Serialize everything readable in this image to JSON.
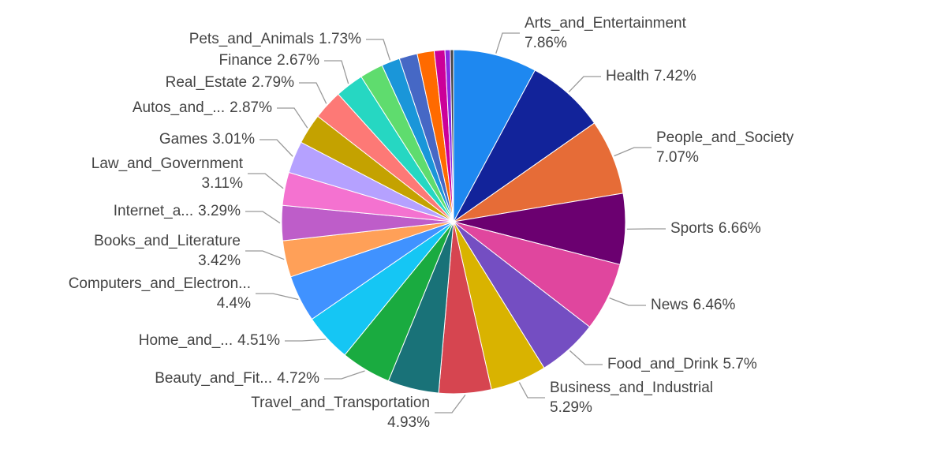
{
  "chart_data": {
    "type": "pie",
    "categories": [
      "Arts_and_Entertainment",
      "Health",
      "People_and_Society",
      "Sports",
      "News",
      "Food_and_Drink",
      "Business_and_Industrial",
      "Travel_and_Transportation",
      null,
      "Beauty_and_Fit...",
      "Home_and_...",
      "Computers_and_Electron...",
      "Books_and_Literature",
      "Internet_a...",
      "Law_and_Government",
      "Games",
      "Autos_and_...",
      "Real_Estate",
      "Finance",
      null,
      "Pets_and_Animals",
      null,
      null,
      null,
      null,
      null
    ],
    "values": [
      7.86,
      7.42,
      7.07,
      6.66,
      6.46,
      5.7,
      5.29,
      4.93,
      4.8,
      4.72,
      4.51,
      4.4,
      3.42,
      3.29,
      3.11,
      3.01,
      2.87,
      2.79,
      2.67,
      2.2,
      1.73,
      1.7,
      1.6,
      1.0,
      0.5,
      0.3
    ],
    "value_labels": [
      "7.86%",
      "7.42%",
      "7.07%",
      "6.66%",
      "6.46%",
      "5.7%",
      "5.29%",
      "4.93%",
      null,
      "4.72%",
      "4.51%",
      "4.4%",
      "3.42%",
      "3.29%",
      "3.11%",
      "3.01%",
      "2.87%",
      "2.79%",
      "2.67%",
      null,
      "1.73%",
      null,
      null,
      null,
      null,
      null
    ],
    "colors": [
      "#1e88f0",
      "#12239a",
      "#e66c37",
      "#6b0070",
      "#e0469e",
      "#744ec2",
      "#d9b300",
      "#d64550",
      "#197278",
      "#1aab40",
      "#15c6f4",
      "#4092ff",
      "#ffa058",
      "#be5dc9",
      "#f472d0",
      "#b5a1ff",
      "#c4a200",
      "#fd7976",
      "#26d7c2",
      "#5fdc6e",
      "#1a96d9",
      "#4668c5",
      "#ff6a00",
      "#cc0099",
      "#8a2be2",
      "#444444"
    ]
  }
}
